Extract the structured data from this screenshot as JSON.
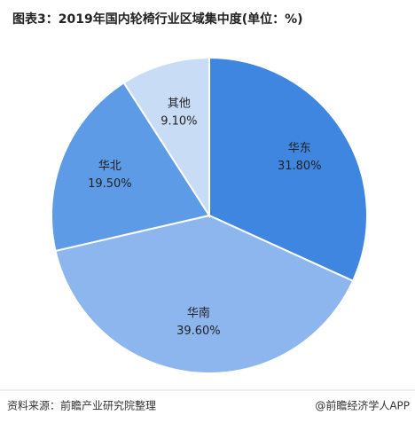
{
  "chart_data": {
    "type": "pie",
    "title": "图表3：2019年国内轮椅行业区域集中度(单位：%)",
    "categories": [
      "华东",
      "华南",
      "华北",
      "其他"
    ],
    "values": [
      31.8,
      39.6,
      19.5,
      9.1
    ],
    "value_labels": [
      "31.80%",
      "39.60%",
      "19.50%",
      "9.10%"
    ],
    "colors": [
      "#3f86e0",
      "#8db6ef",
      "#5e9be6",
      "#c9dcf6"
    ]
  },
  "footer": {
    "source": "资料来源：前瞻产业研究院整理",
    "brand": "@前瞻经济学人APP"
  }
}
